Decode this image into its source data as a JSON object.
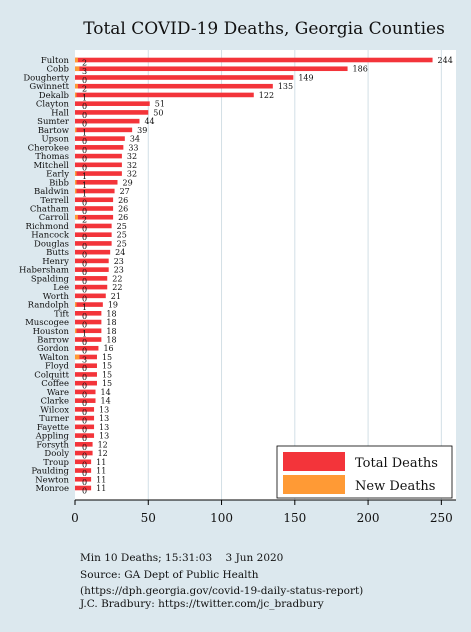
{
  "chart_data": {
    "type": "bar",
    "orientation": "horizontal",
    "title": "Total COVID-19 Deaths, Georgia Counties",
    "xlabel": "",
    "ylabel": "",
    "xlim": [
      0,
      260
    ],
    "xticks": [
      0,
      50,
      100,
      150,
      200,
      250
    ],
    "grid": true,
    "legend_position": "bottom-right",
    "colors": {
      "total": "#f3343a",
      "new": "#ff9a35",
      "background": "#dce8ee",
      "plot": "#ffffff"
    },
    "categories": [
      "Fulton",
      "Cobb",
      "Dougherty",
      "Gwinnett",
      "Dekalb",
      "Clayton",
      "Hall",
      "Sumter",
      "Bartow",
      "Upson",
      "Cherokee",
      "Thomas",
      "Mitchell",
      "Early",
      "Bibb",
      "Baldwin",
      "Terrell",
      "Chatham",
      "Carroll",
      "Richmond",
      "Hancock",
      "Douglas",
      "Butts",
      "Henry",
      "Habersham",
      "Spalding",
      "Lee",
      "Worth",
      "Randolph",
      "Tift",
      "Muscogee",
      "Houston",
      "Barrow",
      "Gordon",
      "Walton",
      "Floyd",
      "Colquitt",
      "Coffee",
      "Ware",
      "Clarke",
      "Wilcox",
      "Turner",
      "Fayette",
      "Appling",
      "Forsyth",
      "Dooly",
      "Troup",
      "Paulding",
      "Newton",
      "Monroe"
    ],
    "series": [
      {
        "name": "Total Deaths",
        "values": [
          244,
          186,
          149,
          135,
          122,
          51,
          50,
          44,
          39,
          34,
          33,
          32,
          32,
          32,
          29,
          27,
          26,
          26,
          26,
          25,
          25,
          25,
          24,
          23,
          23,
          22,
          22,
          21,
          19,
          18,
          18,
          18,
          18,
          16,
          15,
          15,
          15,
          15,
          14,
          14,
          13,
          13,
          13,
          13,
          12,
          12,
          11,
          11,
          11,
          11
        ]
      },
      {
        "name": "New Deaths",
        "values": [
          2,
          3,
          0,
          2,
          1,
          0,
          0,
          0,
          1,
          0,
          0,
          0,
          0,
          1,
          1,
          1,
          0,
          0,
          2,
          0,
          0,
          0,
          0,
          0,
          0,
          0,
          0,
          0,
          1,
          0,
          0,
          1,
          0,
          0,
          3,
          0,
          0,
          0,
          0,
          0,
          0,
          0,
          0,
          0,
          0,
          0,
          0,
          0,
          0,
          0
        ]
      }
    ]
  },
  "footnote": {
    "lines": [
      "Min 10 Deaths; 15:31:03    3 Jun 2020",
      "Source: GA Dept of Public Health",
      "(https://dph.georgia.gov/covid-19-daily-status-report)",
      "J.C. Bradbury: https://twitter.com/jc_bradbury"
    ]
  }
}
